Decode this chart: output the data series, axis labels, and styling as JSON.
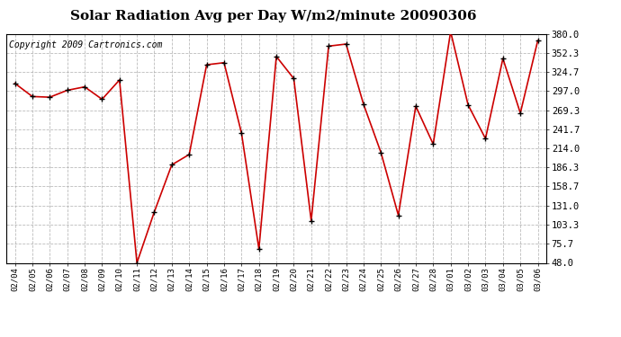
{
  "title": "Solar Radiation Avg per Day W/m2/minute 20090306",
  "copyright": "Copyright 2009 Cartronics.com",
  "dates": [
    "02/04",
    "02/05",
    "02/06",
    "02/07",
    "02/08",
    "02/09",
    "02/10",
    "02/11",
    "02/12",
    "02/13",
    "02/14",
    "02/15",
    "02/16",
    "02/17",
    "02/18",
    "02/19",
    "02/20",
    "02/21",
    "02/22",
    "02/23",
    "02/24",
    "02/25",
    "02/26",
    "02/27",
    "02/28",
    "03/01",
    "03/02",
    "03/03",
    "03/04",
    "03/05",
    "03/06"
  ],
  "values": [
    308.0,
    289.0,
    288.0,
    298.0,
    303.0,
    285.0,
    313.0,
    48.0,
    122.0,
    190.0,
    205.0,
    335.0,
    338.0,
    236.0,
    68.0,
    347.0,
    315.0,
    109.0,
    362.0,
    365.0,
    278.0,
    208.0,
    117.0,
    275.0,
    220.0,
    383.0,
    277.0,
    228.0,
    344.0,
    265.0,
    370.0
  ],
  "line_color": "#cc0000",
  "marker_color": "#000000",
  "bg_color": "#ffffff",
  "plot_bg_color": "#ffffff",
  "grid_color": "#aaaaaa",
  "ylim": [
    48.0,
    380.0
  ],
  "yticks": [
    48.0,
    75.7,
    103.3,
    131.0,
    158.7,
    186.3,
    214.0,
    241.7,
    269.3,
    297.0,
    324.7,
    352.3,
    380.0
  ],
  "title_fontsize": 11,
  "copyright_fontsize": 7,
  "xtick_fontsize": 6.5,
  "ytick_fontsize": 7.5
}
